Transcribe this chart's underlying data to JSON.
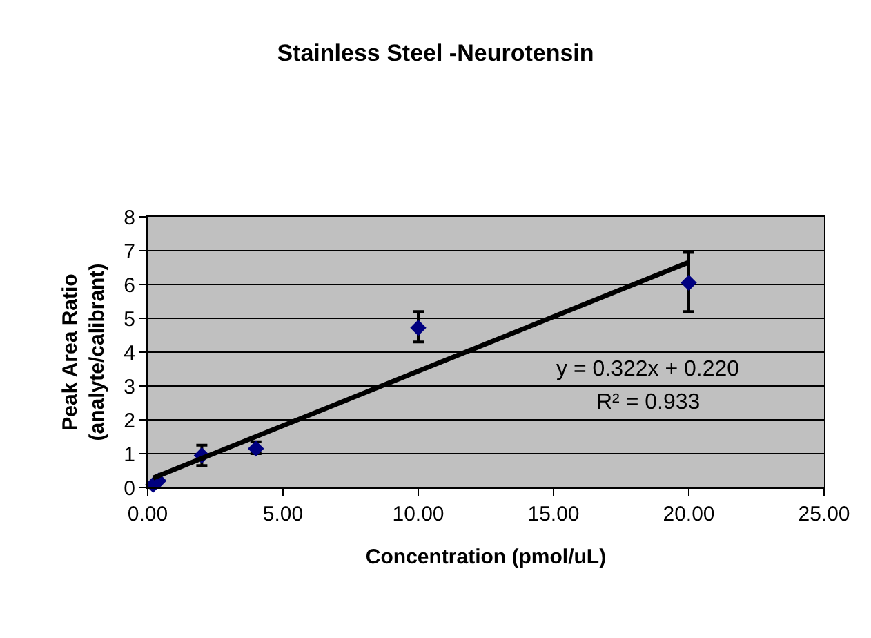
{
  "chart_data": {
    "type": "scatter",
    "title": "Stainless Steel -Neurotensin",
    "xlabel": "Concentration (pmol/uL)",
    "ylabel": "Peak Area Ratio\n(analyte/calibrant)",
    "xlim": [
      0,
      25
    ],
    "xticks": [
      {
        "value": 0,
        "label": "0.00"
      },
      {
        "value": 5,
        "label": "5.00"
      },
      {
        "value": 10,
        "label": "10.00"
      },
      {
        "value": 15,
        "label": "15.00"
      },
      {
        "value": 20,
        "label": "20.00"
      },
      {
        "value": 25,
        "label": "25.00"
      }
    ],
    "ylim": [
      0,
      8
    ],
    "yticks": [
      0,
      1,
      2,
      3,
      4,
      5,
      6,
      7,
      8
    ],
    "grid": "y",
    "series": [
      {
        "color": "#000080",
        "marker": "diamond",
        "x": [
          0.2,
          0.4,
          2,
          4,
          10,
          20
        ],
        "values": [
          0.08,
          0.2,
          0.95,
          1.15,
          4.72,
          6.05
        ],
        "errors": [
          null,
          null,
          [
            0.65,
            1.25
          ],
          [
            1.0,
            1.35
          ],
          [
            4.3,
            5.2
          ],
          [
            5.2,
            6.95
          ]
        ]
      },
      {
        "type": "line",
        "color": "#000000",
        "marker": "none",
        "line_style": "solid",
        "x": [
          0.2,
          20
        ],
        "values": [
          0.28,
          6.66
        ]
      }
    ],
    "annotations": [
      "y = 0.322x + 0.220",
      "R² = 0.933"
    ]
  }
}
